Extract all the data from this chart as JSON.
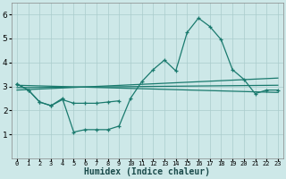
{
  "xlabel": "Humidex (Indice chaleur)",
  "x": [
    0,
    1,
    2,
    3,
    4,
    5,
    6,
    7,
    8,
    9,
    10,
    11,
    12,
    13,
    14,
    15,
    16,
    17,
    18,
    19,
    20,
    21,
    22,
    23
  ],
  "line1": [
    3.1,
    2.85,
    2.35,
    2.2,
    2.5,
    1.1,
    1.2,
    1.2,
    1.2,
    1.35,
    2.5,
    3.2,
    3.7,
    4.1,
    3.65,
    5.25,
    5.85,
    5.5,
    4.95,
    3.7,
    3.3,
    2.7,
    2.85,
    2.85
  ],
  "line2_x": [
    0,
    1,
    2,
    3,
    4,
    5,
    6,
    7,
    8,
    9
  ],
  "line2_y": [
    3.1,
    2.85,
    2.35,
    2.2,
    2.45,
    2.3,
    2.3,
    2.3,
    2.35,
    2.4
  ],
  "line3_x": [
    0,
    23
  ],
  "line3_y": [
    3.05,
    2.75
  ],
  "line4_x": [
    0,
    23
  ],
  "line4_y": [
    2.85,
    3.35
  ],
  "line5_x": [
    0,
    23
  ],
  "line5_y": [
    2.95,
    3.05
  ],
  "bg_color": "#cde8e8",
  "grid_color": "#aacccc",
  "line_color": "#1a7a6e",
  "ylim": [
    0,
    6.5
  ],
  "xlim": [
    -0.5,
    23.5
  ],
  "yticks": [
    1,
    2,
    3,
    4,
    5,
    6
  ],
  "ytick_labels": [
    "1",
    "2",
    "3",
    "4",
    "5",
    "6"
  ],
  "xtick_labels": [
    "0",
    "1",
    "2",
    "3",
    "4",
    "5",
    "6",
    "7",
    "8",
    "9",
    "10",
    "11",
    "12",
    "13",
    "14",
    "15",
    "16",
    "17",
    "18",
    "19",
    "20",
    "21",
    "22",
    "23"
  ]
}
